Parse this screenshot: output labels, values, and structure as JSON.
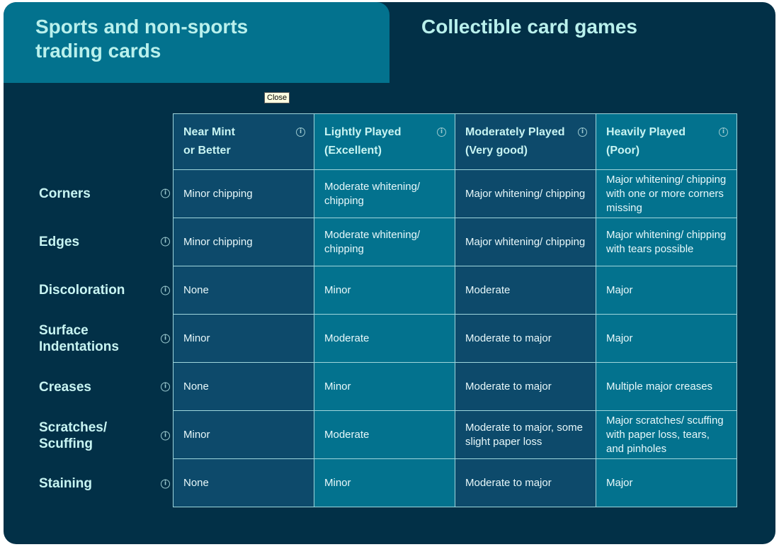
{
  "tabs": [
    {
      "label": "Sports and non-sports trading cards",
      "active": true
    },
    {
      "label": "Collectible card games",
      "active": false
    }
  ],
  "tooltip": "Close",
  "columns": [
    "Near Mint or Better",
    "Lightly Played (Excellent)",
    "Moderately Played (Very good)",
    "Heavily Played (Poor)"
  ],
  "columns_lines": [
    [
      "Near Mint",
      "or Better"
    ],
    [
      "Lightly Played",
      "(Excellent)"
    ],
    [
      "Moderately Played",
      "(Very good)"
    ],
    [
      "Heavily Played",
      "(Poor)"
    ]
  ],
  "rows": [
    {
      "label": "Corners",
      "cells": [
        "Minor chipping",
        "Moderate whitening/ chipping",
        "Major whitening/ chipping",
        "Major whitening/ chipping with one or more corners missing"
      ]
    },
    {
      "label": "Edges",
      "cells": [
        "Minor chipping",
        "Moderate whitening/ chipping",
        "Major whitening/ chipping",
        "Major whitening/ chipping with tears possible"
      ]
    },
    {
      "label": "Discoloration",
      "cells": [
        "None",
        "Minor",
        "Moderate",
        "Major"
      ]
    },
    {
      "label": "Surface Indentations",
      "cells": [
        "Minor",
        "Moderate",
        "Moderate to major",
        "Major"
      ]
    },
    {
      "label": "Creases",
      "cells": [
        "None",
        "Minor",
        "Moderate to major",
        "Multiple major creases"
      ]
    },
    {
      "label": "Scratches/ Scuffing",
      "cells": [
        "Minor",
        "Moderate",
        "Moderate to major, some slight paper loss",
        "Major scratches/ scuffing with paper loss, tears, and pinholes"
      ]
    },
    {
      "label": "Staining",
      "cells": [
        "None",
        "Minor",
        "Moderate to major",
        "Major"
      ]
    }
  ],
  "icons": {
    "info": "info-circle-icon"
  },
  "colors": {
    "background": "#023047",
    "active_tab": "#03728e",
    "column_dark": "#0d4a6b",
    "column_light": "#03728e",
    "heading_text": "#c8f4f2"
  }
}
